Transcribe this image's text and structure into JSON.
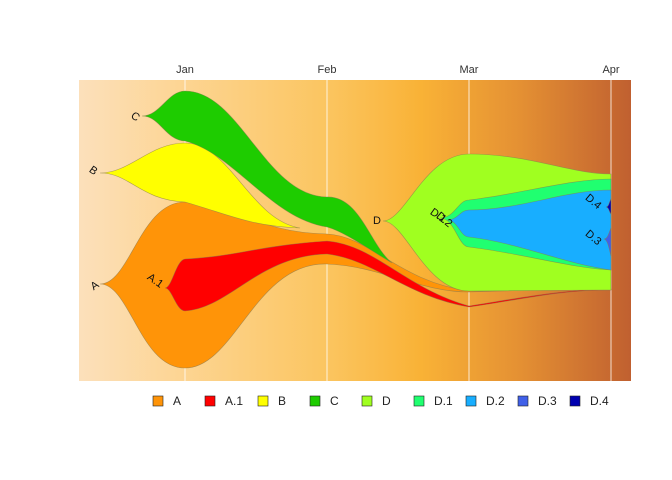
{
  "chart_data": {
    "type": "area",
    "subtype": "streamgraph / evolution tree",
    "x_ticks": [
      "Jan",
      "Feb",
      "Mar",
      "Apr"
    ],
    "x_tick_position": "top",
    "grid": "vertical lines at month ticks",
    "background": "gradient from light peach to dark brown-orange",
    "legend_position": "bottom",
    "series": [
      {
        "name": "A",
        "color": "#FF9408",
        "start": "Dec",
        "end": "Apr"
      },
      {
        "name": "A.1",
        "color": "#FF0000",
        "parent": "A",
        "start": "Dec",
        "end": "Apr"
      },
      {
        "name": "B",
        "color": "#FFFF00",
        "start": "Dec",
        "end": "Jan"
      },
      {
        "name": "C",
        "color": "#1ECC00",
        "start": "Dec",
        "end": "Feb"
      },
      {
        "name": "D",
        "color": "#A0FF20",
        "start": "Feb",
        "end": "Apr"
      },
      {
        "name": "D.1",
        "color": "#20FF70",
        "parent": "D",
        "start": "Mar",
        "end": "Apr"
      },
      {
        "name": "D.2",
        "color": "#18AEFF",
        "parent": "D",
        "start": "Mar",
        "end": "Apr"
      },
      {
        "name": "D.3",
        "color": "#4060E8",
        "parent": "D.2",
        "start": "Apr",
        "end": "Apr"
      },
      {
        "name": "D.4",
        "color": "#0000B0",
        "parent": "D.2",
        "start": "Apr",
        "end": "Apr"
      }
    ],
    "legend": [
      "A",
      "A.1",
      "B",
      "C",
      "D",
      "D.1",
      "D.2",
      "D.3",
      "D.4"
    ]
  }
}
